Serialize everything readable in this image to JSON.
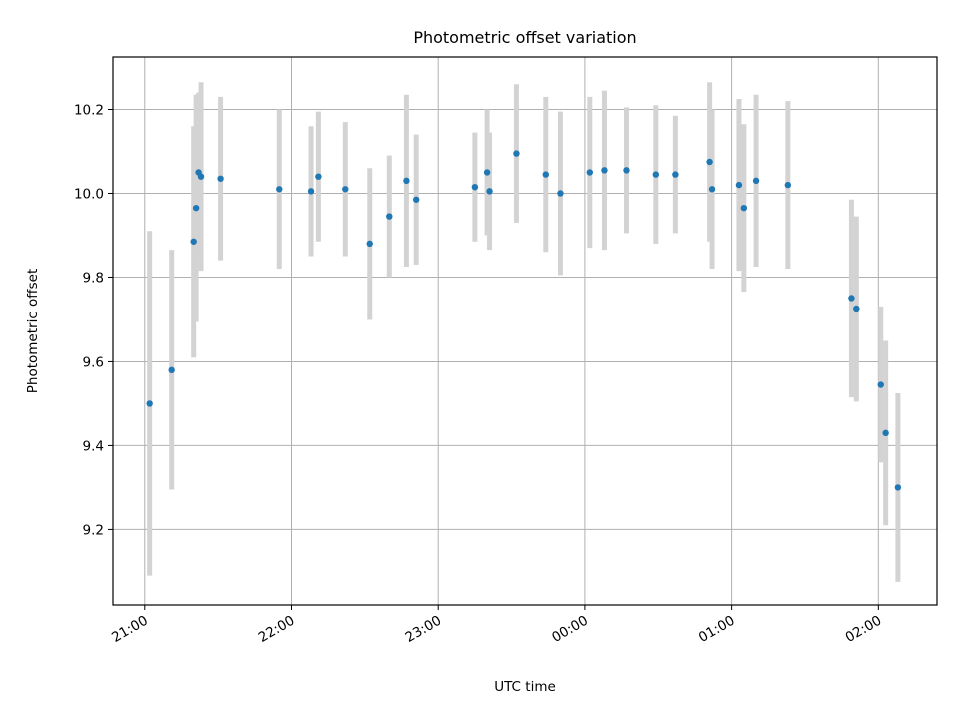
{
  "chart_data": {
    "type": "scatter",
    "title": "Photometric offset variation",
    "xlabel": "UTC time",
    "ylabel": "Photometric offset",
    "x_is_time": true,
    "x_ticks": [
      "21:00",
      "22:00",
      "23:00",
      "00:00",
      "01:00",
      "02:00"
    ],
    "y_ticks": [
      "9.2",
      "9.4",
      "9.6",
      "9.8",
      "10.0",
      "10.2"
    ],
    "y_tick_values": [
      9.2,
      9.4,
      9.6,
      9.8,
      10.0,
      10.2
    ],
    "xlim": [
      "20:47",
      "02:24"
    ],
    "ylim": [
      9.02,
      10.325
    ],
    "grid": true,
    "colors": {
      "point": "#1f77b4",
      "errorbar": "#d3d3d3",
      "grid": "#b0b0b0"
    },
    "series": [
      {
        "points": [
          {
            "x": "21:02",
            "y": 9.5,
            "yerr": 0.41
          },
          {
            "x": "21:11",
            "y": 9.58,
            "yerr": 0.285
          },
          {
            "x": "21:20",
            "y": 9.885,
            "yerr": 0.275
          },
          {
            "x": "21:21",
            "y": 9.965,
            "yerr": 0.27
          },
          {
            "x": "21:22",
            "y": 10.05,
            "yerr": 0.19
          },
          {
            "x": "21:23",
            "y": 10.04,
            "yerr": 0.225
          },
          {
            "x": "21:31",
            "y": 10.035,
            "yerr": 0.195
          },
          {
            "x": "21:55",
            "y": 10.01,
            "yerr": 0.19
          },
          {
            "x": "22:08",
            "y": 10.005,
            "yerr": 0.155
          },
          {
            "x": "22:11",
            "y": 10.04,
            "yerr": 0.155
          },
          {
            "x": "22:22",
            "y": 10.01,
            "yerr": 0.16
          },
          {
            "x": "22:32",
            "y": 9.88,
            "yerr": 0.18
          },
          {
            "x": "22:40",
            "y": 9.945,
            "yerr": 0.145
          },
          {
            "x": "22:47",
            "y": 10.03,
            "yerr": 0.205
          },
          {
            "x": "22:51",
            "y": 9.985,
            "yerr": 0.155
          },
          {
            "x": "23:15",
            "y": 10.015,
            "yerr": 0.13
          },
          {
            "x": "23:20",
            "y": 10.05,
            "yerr": 0.15
          },
          {
            "x": "23:21",
            "y": 10.005,
            "yerr": 0.14
          },
          {
            "x": "23:32",
            "y": 10.095,
            "yerr": 0.165
          },
          {
            "x": "23:44",
            "y": 10.045,
            "yerr": 0.185
          },
          {
            "x": "23:50",
            "y": 10.0,
            "yerr": 0.195
          },
          {
            "x": "00:02",
            "y": 10.05,
            "yerr": 0.18
          },
          {
            "x": "00:08",
            "y": 10.055,
            "yerr": 0.19
          },
          {
            "x": "00:17",
            "y": 10.055,
            "yerr": 0.15
          },
          {
            "x": "00:29",
            "y": 10.045,
            "yerr": 0.165
          },
          {
            "x": "00:37",
            "y": 10.045,
            "yerr": 0.14
          },
          {
            "x": "00:51",
            "y": 10.075,
            "yerr": 0.19
          },
          {
            "x": "00:52",
            "y": 10.01,
            "yerr": 0.19
          },
          {
            "x": "01:03",
            "y": 10.02,
            "yerr": 0.205
          },
          {
            "x": "01:05",
            "y": 9.965,
            "yerr": 0.2
          },
          {
            "x": "01:10",
            "y": 10.03,
            "yerr": 0.205
          },
          {
            "x": "01:23",
            "y": 10.02,
            "yerr": 0.2
          },
          {
            "x": "01:49",
            "y": 9.75,
            "yerr": 0.235
          },
          {
            "x": "01:51",
            "y": 9.725,
            "yerr": 0.22
          },
          {
            "x": "02:01",
            "y": 9.545,
            "yerr": 0.185
          },
          {
            "x": "02:03",
            "y": 9.43,
            "yerr": 0.22
          },
          {
            "x": "02:08",
            "y": 9.3,
            "yerr": 0.225
          }
        ]
      }
    ]
  }
}
